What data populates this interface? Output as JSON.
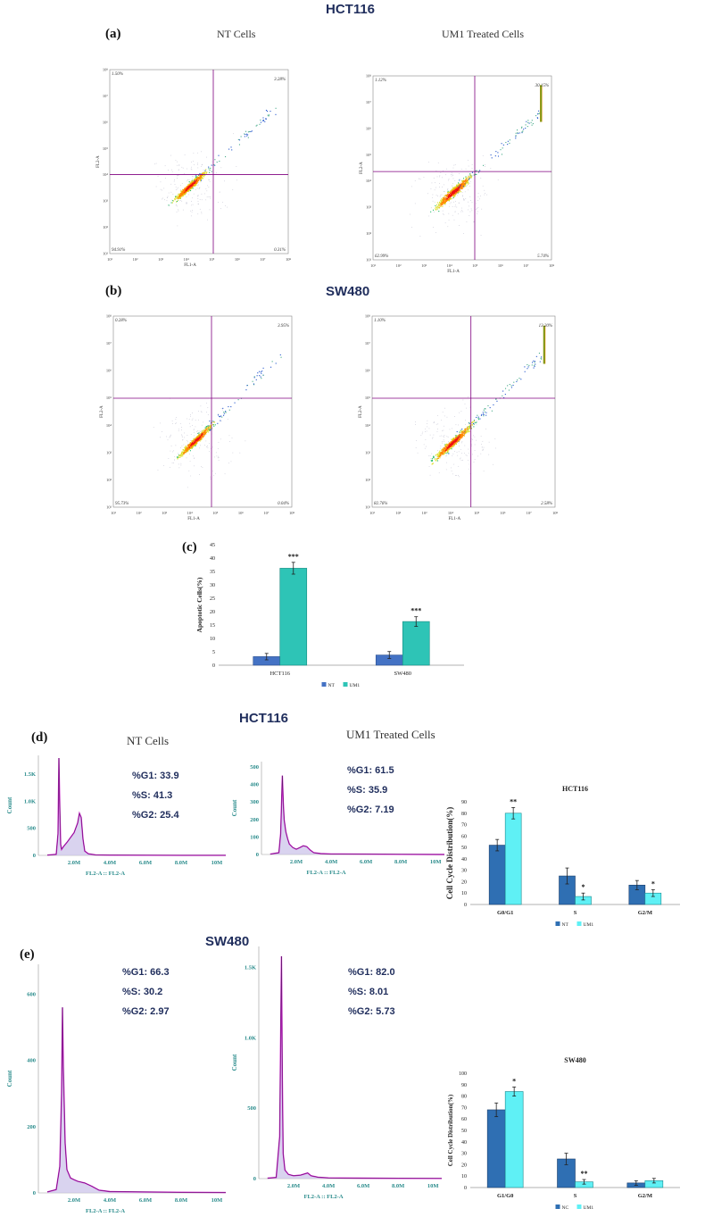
{
  "titles": {
    "hct116_top": "HCT116",
    "sw480_mid": "SW480",
    "hct116_cc": "HCT116",
    "sw480_cc": "SW480"
  },
  "panel_labels": {
    "a": "(a)",
    "b": "(b)",
    "c": "(c)",
    "d": "(d)",
    "e": "(e)"
  },
  "captions": {
    "nt_a": "NT Cells",
    "um1_a": "UM1 Treated Cells",
    "nt_d": "NT Cells",
    "um1_d": "UM1 Treated Cells"
  },
  "colors": {
    "title": "#1f2d5c",
    "nt_bar": "#4472c4",
    "um1_bar": "#2ec4b6",
    "cc_nt": "#2f6fb3",
    "cc_um1": "#5ff0f5",
    "quad": "#800080",
    "hist": "#cc22cc"
  },
  "scatter": [
    {
      "id": "hct-nt",
      "xlabel": "FL1-A",
      "ylabel": "FL2-A",
      "ticks": [
        "10¹",
        "10²",
        "10³",
        "10⁴",
        "10⁵",
        "10⁶",
        "10⁷",
        "10⁸"
      ],
      "q": {
        "ul": "1.50%",
        "ur": "3.28%",
        "ll": "94.91%",
        "lr": "0.31%"
      }
    },
    {
      "id": "hct-um1",
      "xlabel": "FL1-A",
      "ylabel": "FL2-A",
      "ticks": [
        "10¹",
        "10²",
        "10³",
        "10⁴",
        "10⁵",
        "10⁶",
        "10⁷",
        "10⁸"
      ],
      "q": {
        "ul": "1.12%",
        "ur": "30.15%",
        "ll": "62.99%",
        "lr": "5.74%"
      }
    },
    {
      "id": "sw-nt",
      "xlabel": "FL1-A",
      "ylabel": "FL2-A",
      "ticks": [
        "10¹",
        "10²",
        "10³",
        "10⁴",
        "10⁵",
        "10⁶",
        "10⁷",
        "10⁸"
      ],
      "q": {
        "ul": "0.28%",
        "ur": "3.95%",
        "ll": "95.73%",
        "lr": "0.04%"
      }
    },
    {
      "id": "sw-um1",
      "xlabel": "FL1-A",
      "ylabel": "FL2-A",
      "ticks": [
        "10¹",
        "10²",
        "10³",
        "10⁴",
        "10⁵",
        "10⁶",
        "10⁷",
        "10⁸"
      ],
      "q": {
        "ul": "1.10%",
        "ur": "13.20%",
        "ll": "82.76%",
        "lr": "2.58%"
      }
    }
  ],
  "chart_data": [
    {
      "type": "bar",
      "id": "apoptosis",
      "title": "",
      "ylabel": "Apoptotic Cells(%)",
      "categories": [
        "HCT116",
        "SW480"
      ],
      "ylim": [
        0,
        45
      ],
      "yticks": [
        0,
        5,
        10,
        15,
        20,
        25,
        30,
        35,
        40,
        45
      ],
      "series": [
        {
          "name": "NT",
          "values": [
            3.2,
            3.8
          ],
          "errors": [
            1.2,
            1.3
          ]
        },
        {
          "name": "UM1",
          "values": [
            36.2,
            16.3
          ],
          "errors": [
            2.2,
            1.8
          ]
        }
      ],
      "annotations": [
        {
          "category": "HCT116",
          "series": "UM1",
          "text": "***"
        },
        {
          "category": "SW480",
          "series": "UM1",
          "text": "***"
        }
      ],
      "legend": [
        "NT",
        "UM1"
      ],
      "legend_position": "bottom"
    },
    {
      "type": "bar",
      "id": "cc-hct",
      "title": "HCT116",
      "ylabel": "Cell Cycle Distribution(%)",
      "categories": [
        "G0/G1",
        "S",
        "G2/M"
      ],
      "ylim": [
        0,
        90
      ],
      "yticks": [
        0,
        10,
        20,
        30,
        40,
        50,
        60,
        70,
        80,
        90
      ],
      "series": [
        {
          "name": "NT",
          "values": [
            52,
            25,
            17
          ],
          "errors": [
            5,
            7,
            4
          ]
        },
        {
          "name": "UM1",
          "values": [
            80,
            7,
            10
          ],
          "errors": [
            5,
            3,
            3
          ]
        }
      ],
      "annotations": [
        {
          "category": "G0/G1",
          "series": "UM1",
          "text": "**"
        },
        {
          "category": "S",
          "series": "UM1",
          "text": "*"
        },
        {
          "category": "G2/M",
          "series": "UM1",
          "text": "*"
        }
      ],
      "legend": [
        "NT",
        "UM1"
      ],
      "legend_position": "bottom"
    },
    {
      "type": "bar",
      "id": "cc-sw",
      "title": "SW480",
      "ylabel": "Cell Cycle Distribution(%)",
      "categories": [
        "G1/G0",
        "S",
        "G2/M"
      ],
      "ylim": [
        0,
        100
      ],
      "yticks": [
        0,
        10,
        20,
        30,
        40,
        50,
        60,
        70,
        80,
        90,
        100
      ],
      "series": [
        {
          "name": "NC",
          "values": [
            68,
            25,
            4
          ],
          "errors": [
            6,
            5,
            2
          ]
        },
        {
          "name": "UM1",
          "values": [
            84,
            5,
            6
          ],
          "errors": [
            4,
            2,
            2
          ]
        }
      ],
      "annotations": [
        {
          "category": "G1/G0",
          "series": "UM1",
          "text": "*"
        },
        {
          "category": "S",
          "series": "UM1",
          "text": "**"
        }
      ],
      "legend": [
        "NC",
        "UM1"
      ],
      "legend_position": "bottom"
    },
    {
      "type": "line",
      "id": "hist-hct-nt",
      "xlabel": "FL2-A :: FL2-A",
      "ylabel": "Count",
      "xticks": [
        "2.0M",
        "4.0M",
        "6.0M",
        "8.0M",
        "10M"
      ],
      "yticks": [
        "0",
        "500",
        "1.0K",
        "1.5K"
      ],
      "ymax": 1850,
      "x": [
        0.5,
        1.0,
        1.1,
        1.15,
        1.2,
        1.25,
        1.3,
        1.4,
        1.6,
        1.8,
        2.0,
        2.2,
        2.3,
        2.4,
        2.5,
        2.6,
        2.8,
        3.2,
        4,
        6,
        8,
        10.5
      ],
      "y": [
        5,
        20,
        400,
        1800,
        900,
        200,
        110,
        160,
        240,
        330,
        420,
        600,
        780,
        700,
        300,
        80,
        30,
        10,
        5,
        3,
        2,
        1
      ]
    },
    {
      "type": "line",
      "id": "hist-hct-um1",
      "xlabel": "FL2-A :: FL2-A",
      "ylabel": "Count",
      "xticks": [
        "2.0M",
        "4.0M",
        "6.0M",
        "8.0M",
        "10M"
      ],
      "yticks": [
        "0",
        "100",
        "200",
        "300",
        "400",
        "500"
      ],
      "ymax": 530,
      "x": [
        0.5,
        1.0,
        1.1,
        1.2,
        1.25,
        1.3,
        1.4,
        1.5,
        1.6,
        1.8,
        2.0,
        2.2,
        2.4,
        2.6,
        2.8,
        3.0,
        3.4,
        4,
        6,
        8,
        10.5
      ],
      "y": [
        2,
        10,
        120,
        450,
        300,
        200,
        130,
        90,
        60,
        40,
        30,
        40,
        50,
        45,
        25,
        10,
        5,
        3,
        2,
        1,
        0
      ]
    },
    {
      "type": "line",
      "id": "hist-sw-nt",
      "xlabel": "FL2-A :: FL2-A",
      "ylabel": "Count",
      "xticks": [
        "2.0M",
        "4.0M",
        "6.0M",
        "8.0M",
        "10M"
      ],
      "yticks": [
        "0",
        "200",
        "400",
        "600"
      ],
      "ymax": 690,
      "x": [
        0.5,
        1.0,
        1.2,
        1.3,
        1.35,
        1.4,
        1.5,
        1.6,
        1.8,
        2.0,
        2.2,
        2.6,
        3.0,
        3.4,
        4,
        6,
        8,
        10.5
      ],
      "y": [
        3,
        10,
        80,
        300,
        560,
        380,
        150,
        70,
        45,
        40,
        35,
        30,
        20,
        8,
        4,
        3,
        2,
        1
      ]
    },
    {
      "type": "line",
      "id": "hist-sw-um1",
      "xlabel": "FL2-A :: FL2-A",
      "ylabel": "Count",
      "xticks": [
        "2.0M",
        "4.0M",
        "6.0M",
        "8.0M",
        "10M"
      ],
      "yticks": [
        "0",
        "500",
        "1.0K",
        "1.5K"
      ],
      "ymax": 1650,
      "x": [
        0.5,
        1.0,
        1.2,
        1.3,
        1.35,
        1.4,
        1.5,
        1.7,
        2.0,
        2.4,
        2.8,
        3.0,
        3.4,
        4,
        6,
        8,
        10.5
      ],
      "y": [
        3,
        8,
        300,
        1580,
        700,
        180,
        60,
        30,
        20,
        25,
        40,
        20,
        10,
        5,
        3,
        2,
        1
      ]
    }
  ],
  "cc_stats": {
    "hct_nt": {
      "g1": "%G1: 33.9",
      "s": "%S: 41.3",
      "g2": "%G2: 25.4"
    },
    "hct_um1": {
      "g1": "%G1: 61.5",
      "s": "%S: 35.9",
      "g2": "%G2: 7.19"
    },
    "sw_nt": {
      "g1": "%G1: 66.3",
      "s": "%S: 30.2",
      "g2": "%G2: 2.97"
    },
    "sw_um1": {
      "g1": "%G1: 82.0",
      "s": "%S: 8.01",
      "g2": "%G2: 5.73"
    }
  }
}
